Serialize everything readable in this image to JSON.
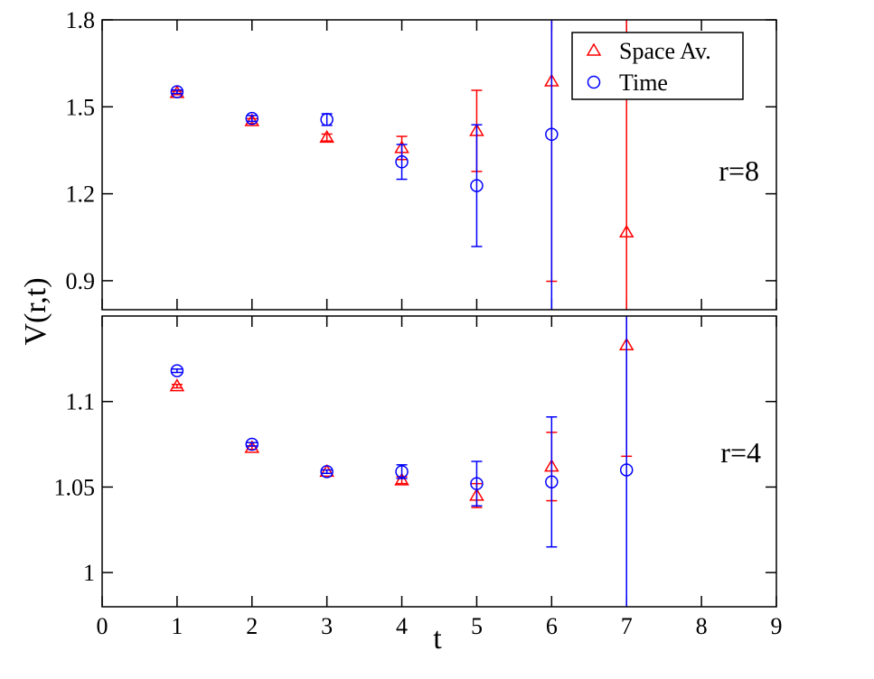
{
  "chart_data": [
    {
      "type": "scatter",
      "panel": "top",
      "annotation": "r=8",
      "xlim": [
        0,
        9
      ],
      "ylim": [
        0.8,
        1.8
      ],
      "yticks": [
        0.9,
        1.2,
        1.5,
        1.8
      ],
      "ytick_labels": [
        "0.9",
        "1.2",
        "1.5",
        "1.8"
      ],
      "legend": {
        "placement": "top-right",
        "entries": [
          "Space Av.",
          "Time"
        ]
      },
      "series": [
        {
          "name": "Space Av.",
          "marker": "triangle",
          "color": "#ff0000",
          "points": [
            {
              "x": 1,
              "y": 1.548,
              "err": 0.006
            },
            {
              "x": 2,
              "y": 1.451,
              "err": 0.008
            },
            {
              "x": 3,
              "y": 1.394,
              "err": 0.012
            },
            {
              "x": 4,
              "y": 1.358,
              "err": 0.04
            },
            {
              "x": 5,
              "y": 1.417,
              "err": 0.14
            },
            {
              "x": 6,
              "y": 1.588,
              "err": 0.69
            },
            {
              "x": 7,
              "y": 1.067,
              "err": 0.8
            }
          ]
        },
        {
          "name": "Time",
          "marker": "circle",
          "color": "#0000ff",
          "points": [
            {
              "x": 1,
              "y": 1.552,
              "err": 0.006
            },
            {
              "x": 2,
              "y": 1.46,
              "err": 0.01
            },
            {
              "x": 3,
              "y": 1.456,
              "err": 0.02
            },
            {
              "x": 4,
              "y": 1.31,
              "err": 0.06
            },
            {
              "x": 5,
              "y": 1.228,
              "err": 0.21
            },
            {
              "x": 6,
              "y": 1.405,
              "err": 1.2
            }
          ]
        }
      ]
    },
    {
      "type": "scatter",
      "panel": "bottom",
      "annotation": "r=4",
      "xlabel": "t",
      "xlim": [
        0,
        9
      ],
      "xticks": [
        0,
        1,
        2,
        3,
        4,
        5,
        6,
        7,
        8,
        9
      ],
      "xtick_labels": [
        "0",
        "1",
        "2",
        "3",
        "4",
        "5",
        "6",
        "7",
        "8",
        "9"
      ],
      "ylim": [
        0.98,
        1.15
      ],
      "yticks": [
        1.0,
        1.05,
        1.1
      ],
      "ytick_labels": [
        "1",
        "1.05",
        "1.1"
      ],
      "series": [
        {
          "name": "Space Av.",
          "marker": "triangle",
          "color": "#ff0000",
          "points": [
            {
              "x": 1,
              "y": 1.109,
              "err": 0.001
            },
            {
              "x": 2,
              "y": 1.073,
              "err": 0.001
            },
            {
              "x": 3,
              "y": 1.059,
              "err": 0.001
            },
            {
              "x": 4,
              "y": 1.054,
              "err": 0.002
            },
            {
              "x": 5,
              "y": 1.045,
              "err": 0.007
            },
            {
              "x": 6,
              "y": 1.062,
              "err": 0.02
            },
            {
              "x": 7,
              "y": 1.133,
              "err": 0.065
            }
          ]
        },
        {
          "name": "Time",
          "marker": "circle",
          "color": "#0000ff",
          "points": [
            {
              "x": 1,
              "y": 1.118,
              "err": 0.001
            },
            {
              "x": 2,
              "y": 1.075,
              "err": 0.001
            },
            {
              "x": 3,
              "y": 1.059,
              "err": 0.001
            },
            {
              "x": 4,
              "y": 1.059,
              "err": 0.004
            },
            {
              "x": 5,
              "y": 1.052,
              "err": 0.013
            },
            {
              "x": 6,
              "y": 1.053,
              "err": 0.038
            },
            {
              "x": 7,
              "y": 1.06,
              "err": 0.1
            }
          ]
        }
      ]
    }
  ],
  "ylabel": "V(r,t)"
}
